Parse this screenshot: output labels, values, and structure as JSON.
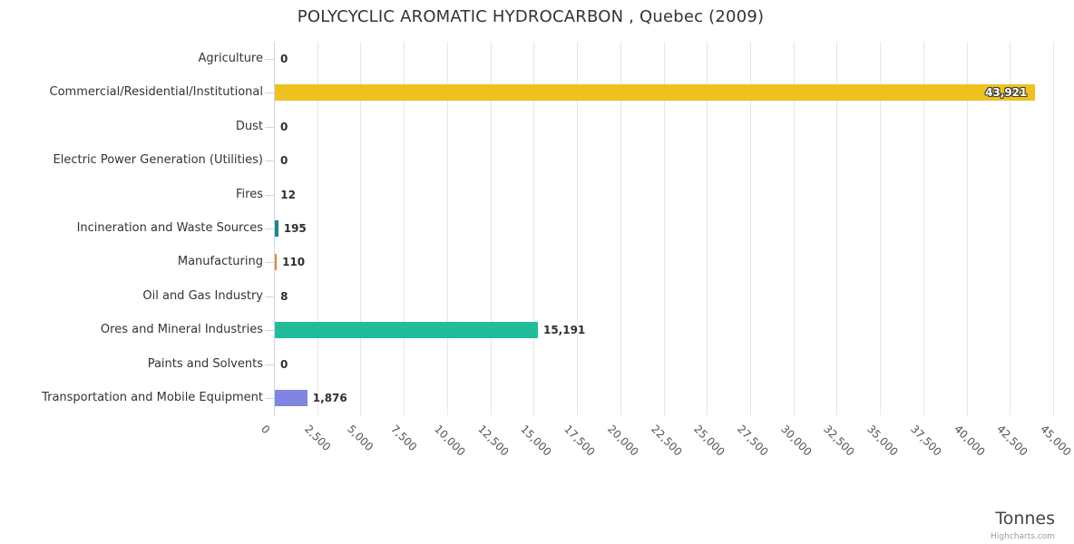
{
  "chart_data": {
    "type": "bar",
    "orientation": "horizontal",
    "title": "POLYCYCLIC AROMATIC HYDROCARBON , Quebec (2009)",
    "xlabel": "Tonnes",
    "categories": [
      "Agriculture",
      "Commercial/Residential/Institutional",
      "Dust",
      "Electric Power Generation (Utilities)",
      "Fires",
      "Incineration and Waste Sources",
      "Manufacturing",
      "Oil and Gas Industry",
      "Ores and Mineral Industries",
      "Paints and Solvents",
      "Transportation and Mobile Equipment"
    ],
    "values": [
      0,
      43921,
      0,
      0,
      12,
      195,
      110,
      8,
      15191,
      0,
      1876
    ],
    "value_labels": [
      "0",
      "43,921",
      "0",
      "0",
      "12",
      "195",
      "110",
      "8",
      "15,191",
      "0",
      "1,876"
    ],
    "label_inside": [
      false,
      true,
      false,
      false,
      false,
      false,
      false,
      false,
      false,
      false,
      false
    ],
    "bar_colors": [
      null,
      "#edc21f",
      null,
      null,
      null,
      "#1f8583",
      "#e8842c",
      null,
      "#21bd9b",
      null,
      "#7f85e0"
    ],
    "value_axis": {
      "min": 0,
      "max": 45000,
      "tick_interval": 2500,
      "tick_labels": [
        "0",
        "2,500",
        "5,000",
        "7,500",
        "10,000",
        "12,500",
        "15,000",
        "17,500",
        "20,000",
        "22,500",
        "25,000",
        "27,500",
        "30,000",
        "32,500",
        "35,000",
        "37,500",
        "40,000",
        "42,500",
        "45,000"
      ]
    },
    "grid": true,
    "legend": "none"
  },
  "credits": "Highcharts.com",
  "theme": {
    "grid_color": "#e6e6e6",
    "axis_line_color": "#ccd6eb",
    "title_color": "#333333",
    "category_label_color": "#333333",
    "tick_label_color": "#555555",
    "credit_color": "#999999"
  }
}
